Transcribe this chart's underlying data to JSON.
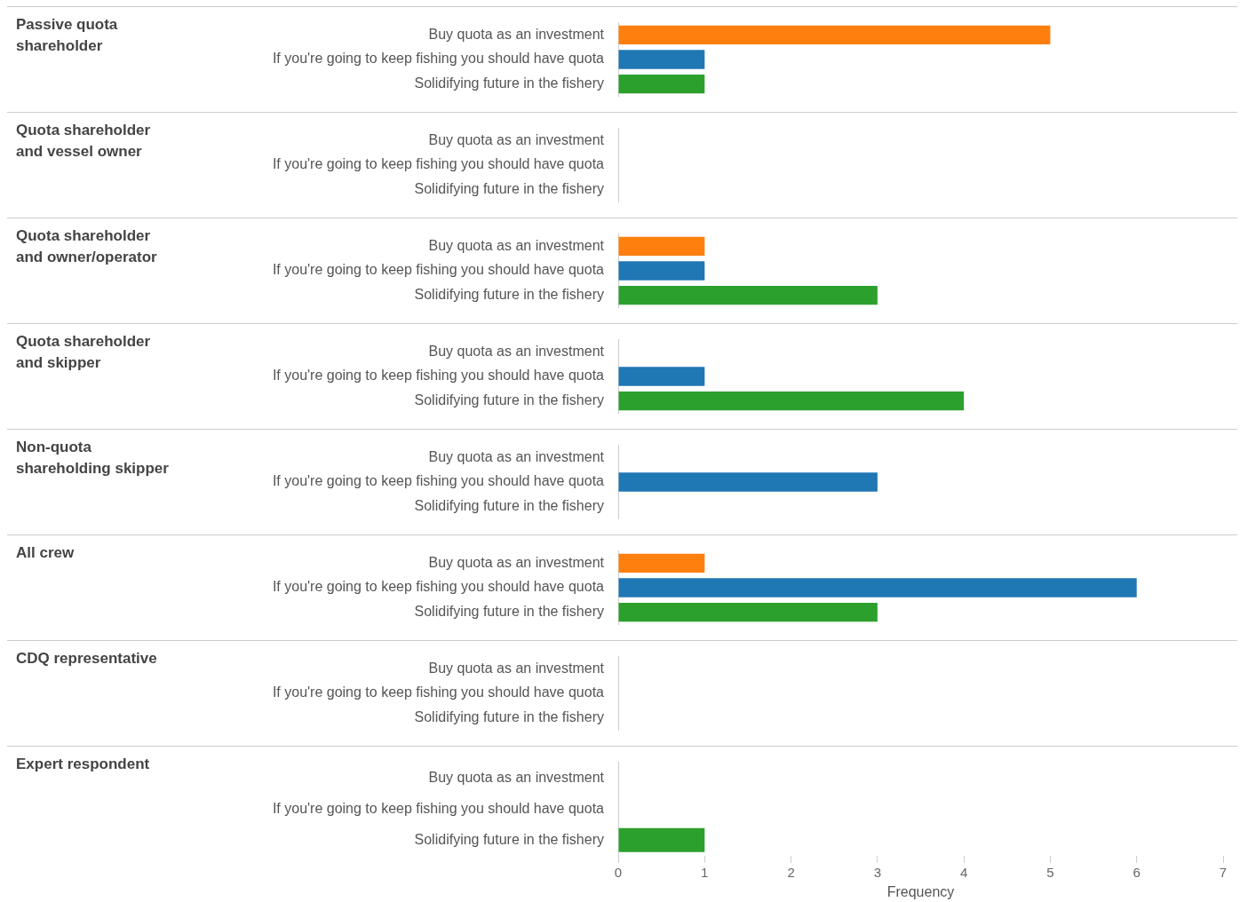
{
  "chart_data": [
    {
      "type": "bar",
      "orientation": "horizontal",
      "ylabel": "Passive quota shareholder",
      "categories": [
        "Buy quota as an investment",
        "If you're going to keep fishing you should have quota",
        "Solidifying future in the fishery"
      ],
      "values": [
        5,
        1,
        1
      ],
      "colors": [
        "#ff7f0e",
        "#1f77b4",
        "#2ca02c"
      ],
      "xlim": [
        0,
        7
      ],
      "xticks": [
        0,
        1,
        2,
        3,
        4,
        5,
        6,
        7
      ],
      "tick_labels": "y"
    },
    {
      "type": "bar",
      "orientation": "horizontal",
      "ylabel": "Quota shareholder and vessel owner",
      "categories": [
        "Buy quota as an investment",
        "If you're going to keep fishing you should have quota",
        "Solidifying future in the fishery"
      ],
      "values": [
        null,
        null,
        null
      ],
      "colors": [
        "#ff7f0e",
        "#1f77b4",
        "#2ca02c"
      ],
      "xlim": [
        0,
        7
      ],
      "xticks": [
        0,
        1,
        2,
        3,
        4,
        5,
        6,
        7
      ],
      "tick_labels": "y"
    },
    {
      "type": "bar",
      "orientation": "horizontal",
      "ylabel": "Quota shareholder and owner/operator",
      "categories": [
        "Buy quota as an investment",
        "If you're going to keep fishing you should have quota",
        "Solidifying future in the fishery"
      ],
      "values": [
        1,
        1,
        3
      ],
      "colors": [
        "#ff7f0e",
        "#1f77b4",
        "#2ca02c"
      ],
      "xlim": [
        0,
        7
      ],
      "xticks": [
        0,
        1,
        2,
        3,
        4,
        5,
        6,
        7
      ],
      "tick_labels": "y"
    },
    {
      "type": "bar",
      "orientation": "horizontal",
      "ylabel": "Quota shareholder and skipper",
      "categories": [
        "Buy quota as an investment",
        "If you're going to keep fishing you should have quota",
        "Solidifying future in the fishery"
      ],
      "values": [
        null,
        1,
        4
      ],
      "colors": [
        "#ff7f0e",
        "#1f77b4",
        "#2ca02c"
      ],
      "xlim": [
        0,
        7
      ],
      "xticks": [
        0,
        1,
        2,
        3,
        4,
        5,
        6,
        7
      ],
      "tick_labels": "y"
    },
    {
      "type": "bar",
      "orientation": "horizontal",
      "ylabel": "Non-quota shareholding skipper",
      "categories": [
        "Buy quota as an investment",
        "If you're going to keep fishing you should have quota",
        "Solidifying future in the fishery"
      ],
      "values": [
        null,
        3,
        null
      ],
      "colors": [
        "#ff7f0e",
        "#1f77b4",
        "#2ca02c"
      ],
      "xlim": [
        0,
        7
      ],
      "xticks": [
        0,
        1,
        2,
        3,
        4,
        5,
        6,
        7
      ],
      "tick_labels": "y"
    },
    {
      "type": "bar",
      "orientation": "horizontal",
      "ylabel": "All crew",
      "categories": [
        "Buy quota as an investment",
        "If you're going to keep fishing you should have quota",
        "Solidifying future in the fishery"
      ],
      "values": [
        1,
        6,
        3
      ],
      "colors": [
        "#ff7f0e",
        "#1f77b4",
        "#2ca02c"
      ],
      "xlim": [
        0,
        7
      ],
      "xticks": [
        0,
        1,
        2,
        3,
        4,
        5,
        6,
        7
      ],
      "tick_labels": "y"
    },
    {
      "type": "bar",
      "orientation": "horizontal",
      "ylabel": "CDQ representative",
      "categories": [
        "Buy quota as an investment",
        "If you're going to keep fishing you should have quota",
        "Solidifying future in the fishery"
      ],
      "values": [
        null,
        null,
        null
      ],
      "colors": [
        "#ff7f0e",
        "#1f77b4",
        "#2ca02c"
      ],
      "xlim": [
        0,
        7
      ],
      "xticks": [
        0,
        1,
        2,
        3,
        4,
        5,
        6,
        7
      ],
      "tick_labels": "y"
    },
    {
      "type": "bar",
      "orientation": "horizontal",
      "ylabel": "Expert respondent",
      "categories": [
        "Buy quota as an investment",
        "If you're going to keep fishing you should have quota",
        "Solidifying future in the fishery"
      ],
      "values": [
        null,
        null,
        1
      ],
      "colors": [
        "#ff7f0e",
        "#1f77b4",
        "#2ca02c"
      ],
      "xlim": [
        0,
        7
      ],
      "xticks": [
        0,
        1,
        2,
        3,
        4,
        5,
        6,
        7
      ],
      "xlabel": "Frequency"
    }
  ]
}
